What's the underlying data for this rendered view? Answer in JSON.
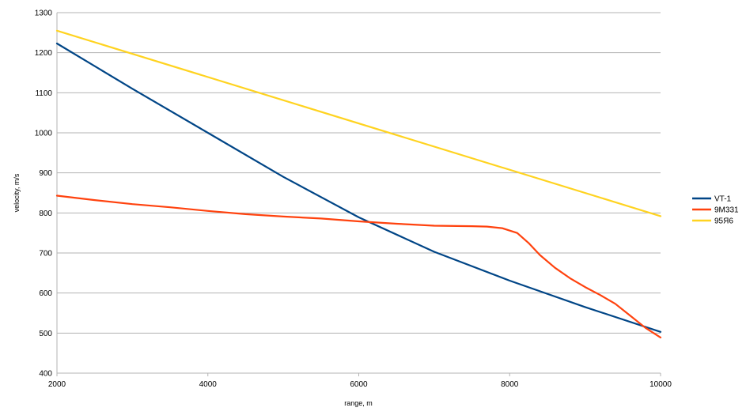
{
  "chart_data": {
    "type": "line",
    "title": "",
    "xlabel": "range, m",
    "ylabel": "velocity, m/s",
    "xlim": [
      2000,
      10000
    ],
    "ylim": [
      400,
      1300
    ],
    "x_ticks": [
      2000,
      4000,
      6000,
      8000,
      10000
    ],
    "y_ticks": [
      400,
      500,
      600,
      700,
      800,
      900,
      1000,
      1100,
      1200,
      1300
    ],
    "grid": "horizontal",
    "legend_position": "right",
    "series": [
      {
        "name": "VT-1",
        "color": "#004586",
        "points": [
          [
            2000,
            1223
          ],
          [
            3000,
            1110
          ],
          [
            4000,
            1000
          ],
          [
            5000,
            890
          ],
          [
            6000,
            789
          ],
          [
            7000,
            703
          ],
          [
            8000,
            631
          ],
          [
            9000,
            565
          ],
          [
            10000,
            503
          ]
        ]
      },
      {
        "name": "9M331",
        "color": "#ff420e",
        "points": [
          [
            2000,
            843
          ],
          [
            2500,
            832
          ],
          [
            3000,
            822
          ],
          [
            3500,
            814
          ],
          [
            4000,
            805
          ],
          [
            4500,
            797
          ],
          [
            5000,
            791
          ],
          [
            5500,
            786
          ],
          [
            6000,
            779
          ],
          [
            6500,
            773
          ],
          [
            7000,
            768
          ],
          [
            7500,
            767
          ],
          [
            7700,
            766
          ],
          [
            7900,
            762
          ],
          [
            8100,
            750
          ],
          [
            8250,
            725
          ],
          [
            8400,
            695
          ],
          [
            8600,
            663
          ],
          [
            8800,
            637
          ],
          [
            9000,
            615
          ],
          [
            9200,
            595
          ],
          [
            9400,
            573
          ],
          [
            9600,
            543
          ],
          [
            9800,
            513
          ],
          [
            10000,
            489
          ]
        ]
      },
      {
        "name": "95Я6",
        "color": "#ffd320",
        "points": [
          [
            2000,
            1255
          ],
          [
            10000,
            792
          ]
        ]
      }
    ]
  }
}
